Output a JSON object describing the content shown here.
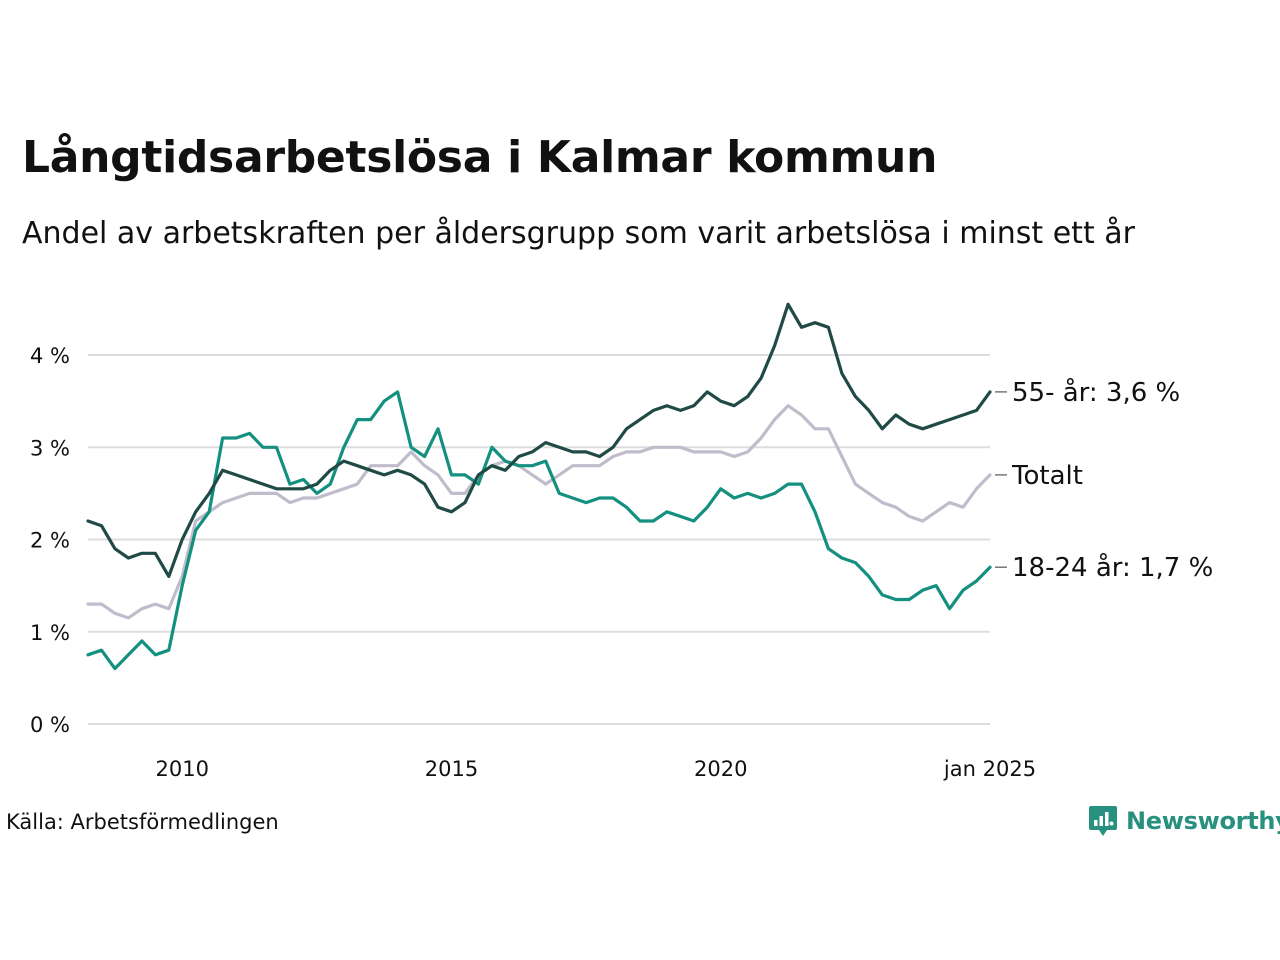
{
  "title": "Långtidsarbetslösa i Kalmar kommun",
  "subtitle": "Andel av arbetskraften per åldersgrupp som varit arbetslösa i minst ett år",
  "source": "Källa: Arbetsförmedlingen",
  "brand": "Newsworthy",
  "colors": {
    "dark": "#1f4a45",
    "teal": "#13907f",
    "gray": "#c0bccb",
    "grid": "#dddddd",
    "brand": "#27907f"
  },
  "chart_data": {
    "type": "line",
    "x_start": "2008-04",
    "x_end": "2025-01",
    "ylim": [
      0,
      4.7
    ],
    "yticks": [
      {
        "value": 0,
        "label": "0 %"
      },
      {
        "value": 1,
        "label": "1 %"
      },
      {
        "value": 2,
        "label": "2 %"
      },
      {
        "value": 3,
        "label": "3 %"
      },
      {
        "value": 4,
        "label": "4 %"
      }
    ],
    "xticks": [
      {
        "value": 2010,
        "label": "2010"
      },
      {
        "value": 2015,
        "label": "2015"
      },
      {
        "value": 2020,
        "label": "2020"
      },
      {
        "value": 2025,
        "label": "jan 2025"
      }
    ],
    "series": [
      {
        "label": "Totalt",
        "color": "#c0bccb",
        "points": [
          [
            2008.25,
            1.3
          ],
          [
            2008.5,
            1.3
          ],
          [
            2008.75,
            1.2
          ],
          [
            2009.0,
            1.15
          ],
          [
            2009.25,
            1.25
          ],
          [
            2009.5,
            1.3
          ],
          [
            2009.75,
            1.25
          ],
          [
            2010.0,
            1.6
          ],
          [
            2010.25,
            2.2
          ],
          [
            2010.5,
            2.3
          ],
          [
            2010.75,
            2.4
          ],
          [
            2011.0,
            2.45
          ],
          [
            2011.25,
            2.5
          ],
          [
            2011.5,
            2.5
          ],
          [
            2011.75,
            2.5
          ],
          [
            2012.0,
            2.4
          ],
          [
            2012.25,
            2.45
          ],
          [
            2012.5,
            2.45
          ],
          [
            2012.75,
            2.5
          ],
          [
            2013.0,
            2.55
          ],
          [
            2013.25,
            2.6
          ],
          [
            2013.5,
            2.8
          ],
          [
            2013.75,
            2.8
          ],
          [
            2014.0,
            2.8
          ],
          [
            2014.25,
            2.95
          ],
          [
            2014.5,
            2.8
          ],
          [
            2014.75,
            2.7
          ],
          [
            2015.0,
            2.5
          ],
          [
            2015.25,
            2.5
          ],
          [
            2015.5,
            2.7
          ],
          [
            2015.75,
            2.8
          ],
          [
            2016.0,
            2.85
          ],
          [
            2016.25,
            2.8
          ],
          [
            2016.5,
            2.7
          ],
          [
            2016.75,
            2.6
          ],
          [
            2017.0,
            2.7
          ],
          [
            2017.25,
            2.8
          ],
          [
            2017.5,
            2.8
          ],
          [
            2017.75,
            2.8
          ],
          [
            2018.0,
            2.9
          ],
          [
            2018.25,
            2.95
          ],
          [
            2018.5,
            2.95
          ],
          [
            2018.75,
            3.0
          ],
          [
            2019.0,
            3.0
          ],
          [
            2019.25,
            3.0
          ],
          [
            2019.5,
            2.95
          ],
          [
            2019.75,
            2.95
          ],
          [
            2020.0,
            2.95
          ],
          [
            2020.25,
            2.9
          ],
          [
            2020.5,
            2.95
          ],
          [
            2020.75,
            3.1
          ],
          [
            2021.0,
            3.3
          ],
          [
            2021.25,
            3.45
          ],
          [
            2021.5,
            3.35
          ],
          [
            2021.75,
            3.2
          ],
          [
            2022.0,
            3.2
          ],
          [
            2022.25,
            2.9
          ],
          [
            2022.5,
            2.6
          ],
          [
            2022.75,
            2.5
          ],
          [
            2023.0,
            2.4
          ],
          [
            2023.25,
            2.35
          ],
          [
            2023.5,
            2.25
          ],
          [
            2023.75,
            2.2
          ],
          [
            2024.0,
            2.3
          ],
          [
            2024.25,
            2.4
          ],
          [
            2024.5,
            2.35
          ],
          [
            2024.75,
            2.55
          ],
          [
            2025.0,
            2.7
          ]
        ]
      },
      {
        "label": "18-24 år: 1,7 %",
        "color": "#13907f",
        "points": [
          [
            2008.25,
            0.75
          ],
          [
            2008.5,
            0.8
          ],
          [
            2008.75,
            0.6
          ],
          [
            2009.0,
            0.75
          ],
          [
            2009.25,
            0.9
          ],
          [
            2009.5,
            0.75
          ],
          [
            2009.75,
            0.8
          ],
          [
            2010.0,
            1.5
          ],
          [
            2010.25,
            2.1
          ],
          [
            2010.5,
            2.3
          ],
          [
            2010.75,
            3.1
          ],
          [
            2011.0,
            3.1
          ],
          [
            2011.25,
            3.15
          ],
          [
            2011.5,
            3.0
          ],
          [
            2011.75,
            3.0
          ],
          [
            2012.0,
            2.6
          ],
          [
            2012.25,
            2.65
          ],
          [
            2012.5,
            2.5
          ],
          [
            2012.75,
            2.6
          ],
          [
            2013.0,
            3.0
          ],
          [
            2013.25,
            3.3
          ],
          [
            2013.5,
            3.3
          ],
          [
            2013.75,
            3.5
          ],
          [
            2014.0,
            3.6
          ],
          [
            2014.25,
            3.0
          ],
          [
            2014.5,
            2.9
          ],
          [
            2014.75,
            3.2
          ],
          [
            2015.0,
            2.7
          ],
          [
            2015.25,
            2.7
          ],
          [
            2015.5,
            2.6
          ],
          [
            2015.75,
            3.0
          ],
          [
            2016.0,
            2.85
          ],
          [
            2016.25,
            2.8
          ],
          [
            2016.5,
            2.8
          ],
          [
            2016.75,
            2.85
          ],
          [
            2017.0,
            2.5
          ],
          [
            2017.25,
            2.45
          ],
          [
            2017.5,
            2.4
          ],
          [
            2017.75,
            2.45
          ],
          [
            2018.0,
            2.45
          ],
          [
            2018.25,
            2.35
          ],
          [
            2018.5,
            2.2
          ],
          [
            2018.75,
            2.2
          ],
          [
            2019.0,
            2.3
          ],
          [
            2019.25,
            2.25
          ],
          [
            2019.5,
            2.2
          ],
          [
            2019.75,
            2.35
          ],
          [
            2020.0,
            2.55
          ],
          [
            2020.25,
            2.45
          ],
          [
            2020.5,
            2.5
          ],
          [
            2020.75,
            2.45
          ],
          [
            2021.0,
            2.5
          ],
          [
            2021.25,
            2.6
          ],
          [
            2021.5,
            2.6
          ],
          [
            2021.75,
            2.3
          ],
          [
            2022.0,
            1.9
          ],
          [
            2022.25,
            1.8
          ],
          [
            2022.5,
            1.75
          ],
          [
            2022.75,
            1.6
          ],
          [
            2023.0,
            1.4
          ],
          [
            2023.25,
            1.35
          ],
          [
            2023.5,
            1.35
          ],
          [
            2023.75,
            1.45
          ],
          [
            2024.0,
            1.5
          ],
          [
            2024.25,
            1.25
          ],
          [
            2024.5,
            1.45
          ],
          [
            2024.75,
            1.55
          ],
          [
            2025.0,
            1.7
          ]
        ]
      },
      {
        "label": "55- år: 3,6 %",
        "color": "#1f4a45",
        "points": [
          [
            2008.25,
            2.2
          ],
          [
            2008.5,
            2.15
          ],
          [
            2008.75,
            1.9
          ],
          [
            2009.0,
            1.8
          ],
          [
            2009.25,
            1.85
          ],
          [
            2009.5,
            1.85
          ],
          [
            2009.75,
            1.6
          ],
          [
            2010.0,
            2.0
          ],
          [
            2010.25,
            2.3
          ],
          [
            2010.5,
            2.5
          ],
          [
            2010.75,
            2.75
          ],
          [
            2011.0,
            2.7
          ],
          [
            2011.25,
            2.65
          ],
          [
            2011.5,
            2.6
          ],
          [
            2011.75,
            2.55
          ],
          [
            2012.0,
            2.55
          ],
          [
            2012.25,
            2.55
          ],
          [
            2012.5,
            2.6
          ],
          [
            2012.75,
            2.75
          ],
          [
            2013.0,
            2.85
          ],
          [
            2013.25,
            2.8
          ],
          [
            2013.5,
            2.75
          ],
          [
            2013.75,
            2.7
          ],
          [
            2014.0,
            2.75
          ],
          [
            2014.25,
            2.7
          ],
          [
            2014.5,
            2.6
          ],
          [
            2014.75,
            2.35
          ],
          [
            2015.0,
            2.3
          ],
          [
            2015.25,
            2.4
          ],
          [
            2015.5,
            2.7
          ],
          [
            2015.75,
            2.8
          ],
          [
            2016.0,
            2.75
          ],
          [
            2016.25,
            2.9
          ],
          [
            2016.5,
            2.95
          ],
          [
            2016.75,
            3.05
          ],
          [
            2017.0,
            3.0
          ],
          [
            2017.25,
            2.95
          ],
          [
            2017.5,
            2.95
          ],
          [
            2017.75,
            2.9
          ],
          [
            2018.0,
            3.0
          ],
          [
            2018.25,
            3.2
          ],
          [
            2018.5,
            3.3
          ],
          [
            2018.75,
            3.4
          ],
          [
            2019.0,
            3.45
          ],
          [
            2019.25,
            3.4
          ],
          [
            2019.5,
            3.45
          ],
          [
            2019.75,
            3.6
          ],
          [
            2020.0,
            3.5
          ],
          [
            2020.25,
            3.45
          ],
          [
            2020.5,
            3.55
          ],
          [
            2020.75,
            3.75
          ],
          [
            2021.0,
            4.1
          ],
          [
            2021.25,
            4.55
          ],
          [
            2021.5,
            4.3
          ],
          [
            2021.75,
            4.35
          ],
          [
            2022.0,
            4.3
          ],
          [
            2022.25,
            3.8
          ],
          [
            2022.5,
            3.55
          ],
          [
            2022.75,
            3.4
          ],
          [
            2023.0,
            3.2
          ],
          [
            2023.25,
            3.35
          ],
          [
            2023.5,
            3.25
          ],
          [
            2023.75,
            3.2
          ],
          [
            2024.0,
            3.25
          ],
          [
            2024.25,
            3.3
          ],
          [
            2024.5,
            3.35
          ],
          [
            2024.75,
            3.4
          ],
          [
            2025.0,
            3.6
          ]
        ]
      }
    ]
  }
}
